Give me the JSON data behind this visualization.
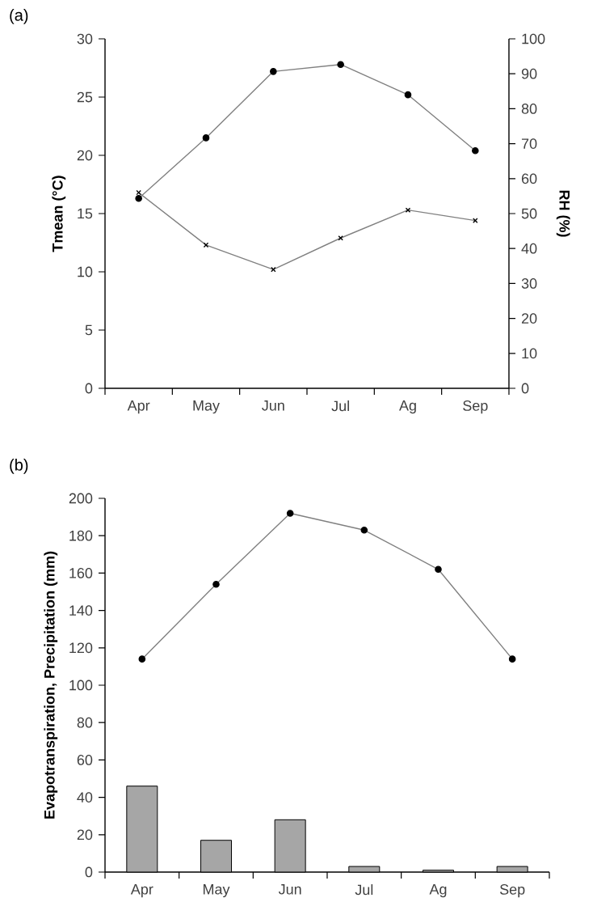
{
  "chart_data": [
    {
      "type": "line",
      "annotations": [
        "(a)"
      ],
      "categories": [
        "Apr",
        "May",
        "Jun",
        "Jul",
        "Ag",
        "Sep"
      ],
      "ylabel": "Tmean (°C)",
      "y2label": "RH (%)",
      "ylim": [
        0,
        30
      ],
      "yticks": [
        0,
        5,
        10,
        15,
        20,
        25,
        30
      ],
      "y2lim": [
        0,
        100
      ],
      "y2ticks": [
        0,
        10,
        20,
        30,
        40,
        50,
        60,
        70,
        80,
        90,
        100
      ],
      "series": [
        {
          "color": "#808080",
          "marker": "circle",
          "values": [
            16.3,
            21.5,
            27.2,
            27.8,
            25.2,
            20.4
          ]
        },
        {
          "color": "#808080",
          "marker": "cross",
          "axis": "y2",
          "values": [
            56,
            41,
            34,
            43,
            51,
            48
          ]
        }
      ]
    },
    {
      "type": "bar",
      "annotations": [
        "(b)"
      ],
      "categories": [
        "Apr",
        "May",
        "Jun",
        "Jul",
        "Ag",
        "Sep"
      ],
      "ylabel": "Evapotranspiration, Precipitation (mm)",
      "ylim": [
        0,
        200
      ],
      "yticks": [
        0,
        20,
        40,
        60,
        80,
        100,
        120,
        140,
        160,
        180,
        200
      ],
      "series": [
        {
          "type": "line",
          "color": "#808080",
          "marker": "circle",
          "values": [
            114,
            154,
            192,
            183,
            162,
            114
          ]
        },
        {
          "type": "bar",
          "color": "#a6a6a6",
          "values": [
            46,
            17,
            28,
            3,
            1,
            3
          ]
        }
      ]
    }
  ]
}
